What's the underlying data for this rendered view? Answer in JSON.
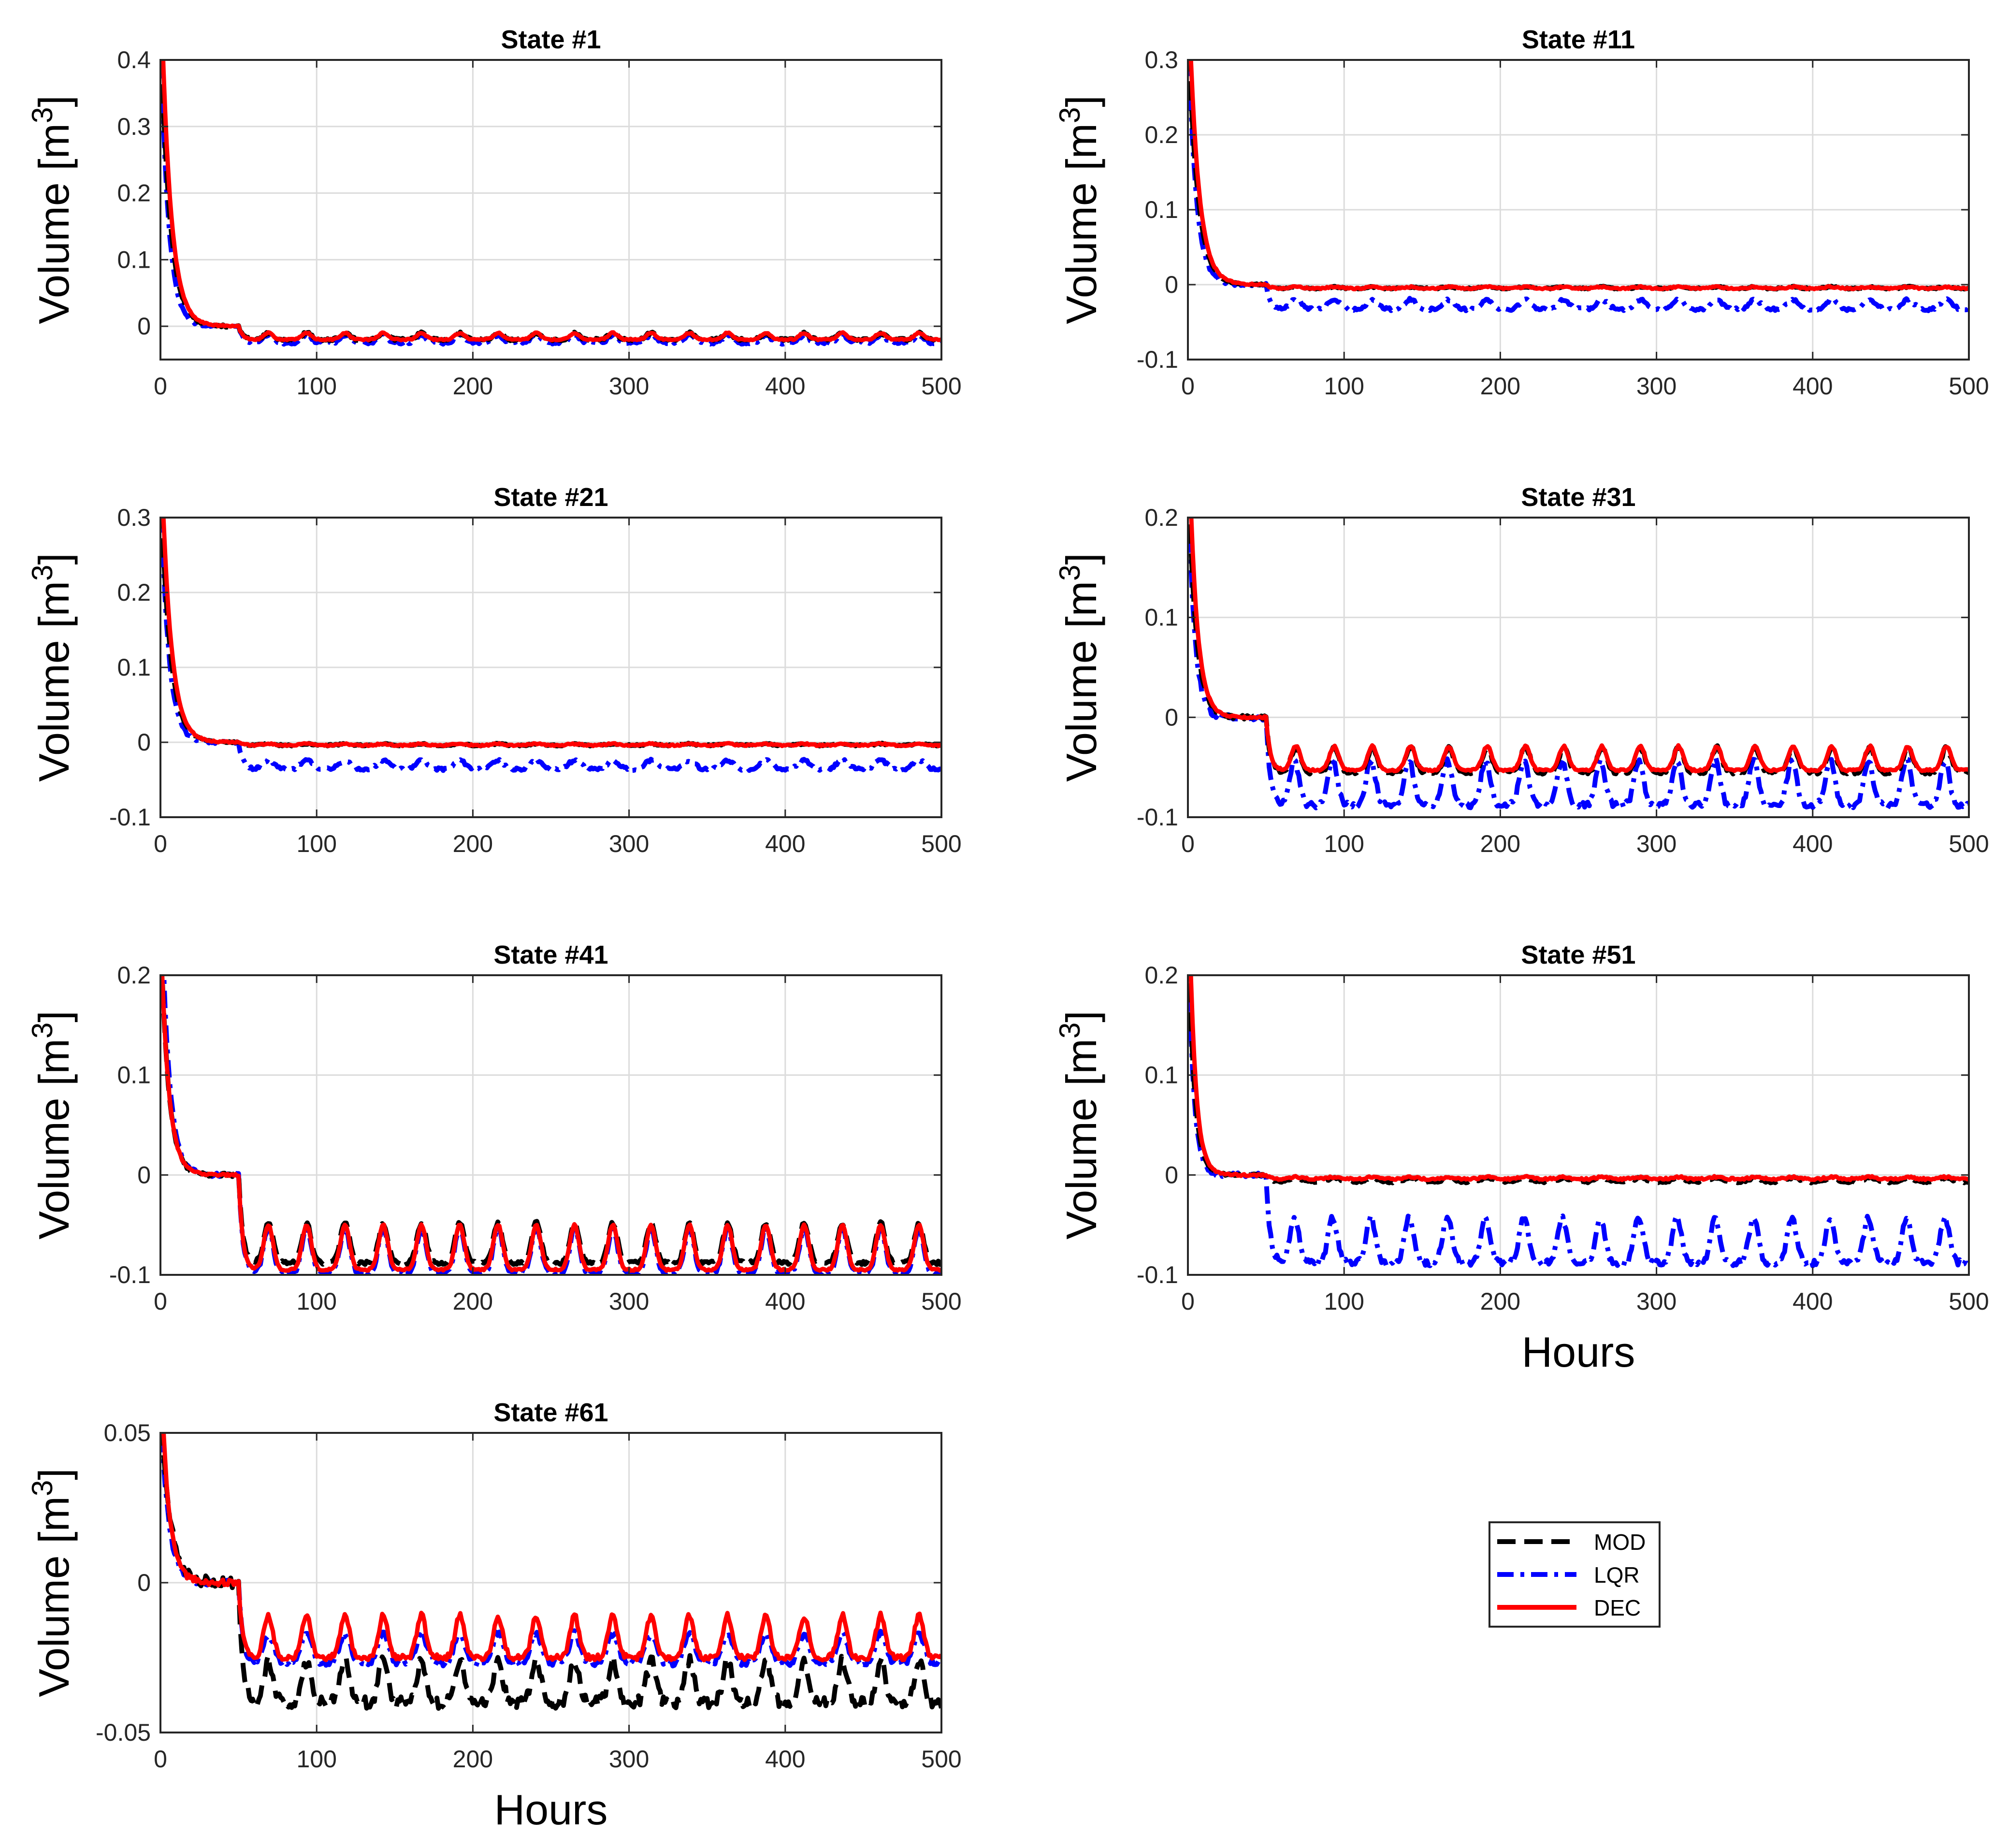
{
  "figure": {
    "ylabel_main": "Volume [m",
    "ylabel_sup": "3",
    "ylabel_close": "]",
    "xlabel": "Hours",
    "colors": {
      "MOD": "#000000",
      "LQR": "#0000ff",
      "DEC": "#ff0000",
      "grid": "#dcdcdc",
      "axis": "#262626"
    }
  },
  "legend": {
    "entries": [
      {
        "name": "MOD",
        "label": "MOD",
        "color": "#000000",
        "dash": "dash"
      },
      {
        "name": "LQR",
        "label": "LQR",
        "color": "#0000ff",
        "dash": "dashdot"
      },
      {
        "name": "DEC",
        "label": "DEC",
        "color": "#ff0000",
        "dash": "solid"
      }
    ]
  },
  "chart_data": [
    {
      "type": "line",
      "title": "State #1",
      "xlabel": "",
      "ylabel": "Volume [m3]",
      "xlim": [
        0,
        500
      ],
      "ylim": [
        -0.05,
        0.4
      ],
      "xticks": [
        0,
        100,
        200,
        300,
        400,
        500
      ],
      "xtick_labels": [
        "0",
        "100",
        "200",
        "300",
        "400",
        "500"
      ],
      "yticks": [
        0,
        0.1,
        0.2,
        0.3,
        0.4
      ],
      "ytick_labels": [
        "0",
        "0.1",
        "0.2",
        "0.3",
        "0.4"
      ],
      "grid": true,
      "series": [
        {
          "name": "MOD",
          "initial": 0.45,
          "tau": 6,
          "delay": 0,
          "step_t": 50,
          "base": -0.02,
          "amp": 0.01,
          "period": 24.5,
          "peak_at": 0.78,
          "peak_width": 0.12,
          "noise": 0.002
        },
        {
          "name": "LQR",
          "initial": 0.45,
          "tau": 5,
          "delay": 0,
          "step_t": 50,
          "base": -0.025,
          "amp": 0.012,
          "period": 24.5,
          "peak_at": 0.78,
          "peak_width": 0.12,
          "noise": 0.002
        },
        {
          "name": "DEC",
          "initial": 0.45,
          "tau": 6,
          "delay": 1,
          "step_t": 50,
          "base": -0.02,
          "amp": 0.01,
          "period": 24.5,
          "peak_at": 0.78,
          "peak_width": 0.12,
          "noise": 0.001
        }
      ]
    },
    {
      "type": "line",
      "title": "State #11",
      "xlabel": "",
      "ylabel": "Volume [m3]",
      "xlim": [
        0,
        500
      ],
      "ylim": [
        -0.1,
        0.3
      ],
      "xticks": [
        0,
        100,
        200,
        300,
        400,
        500
      ],
      "xtick_labels": [
        "0",
        "100",
        "200",
        "300",
        "400",
        "500"
      ],
      "yticks": [
        -0.1,
        0,
        0.1,
        0.2,
        0.3
      ],
      "ytick_labels": [
        "-0.1",
        "0",
        "0.1",
        "0.2",
        "0.3"
      ],
      "grid": true,
      "series": [
        {
          "name": "MOD",
          "initial": 0.35,
          "tau": 6,
          "delay": 0,
          "step_t": 50,
          "base": -0.005,
          "amp": 0.002,
          "period": 24.5,
          "peak_at": 0.78,
          "peak_width": 0.15,
          "noise": 0.001
        },
        {
          "name": "LQR",
          "initial": 0.35,
          "tau": 5,
          "delay": 0,
          "step_t": 50,
          "base": -0.033,
          "amp": 0.013,
          "period": 24.5,
          "peak_at": 0.78,
          "peak_width": 0.15,
          "noise": 0.002
        },
        {
          "name": "DEC",
          "initial": 0.35,
          "tau": 6,
          "delay": 1,
          "step_t": 50,
          "base": -0.005,
          "amp": 0.002,
          "period": 24.5,
          "peak_at": 0.78,
          "peak_width": 0.15,
          "noise": 0.001
        }
      ]
    },
    {
      "type": "line",
      "title": "State #21",
      "xlabel": "",
      "ylabel": "Volume [m3]",
      "xlim": [
        0,
        500
      ],
      "ylim": [
        -0.1,
        0.3
      ],
      "xticks": [
        0,
        100,
        200,
        300,
        400,
        500
      ],
      "xtick_labels": [
        "0",
        "100",
        "200",
        "300",
        "400",
        "500"
      ],
      "yticks": [
        -0.1,
        0,
        0.1,
        0.2,
        0.3
      ],
      "ytick_labels": [
        "-0.1",
        "0",
        "0.1",
        "0.2",
        "0.3"
      ],
      "grid": true,
      "series": [
        {
          "name": "MOD",
          "initial": 0.35,
          "tau": 6,
          "delay": 0,
          "step_t": 50,
          "base": -0.004,
          "amp": 0.002,
          "period": 24.5,
          "peak_at": 0.78,
          "peak_width": 0.15,
          "noise": 0.001
        },
        {
          "name": "LQR",
          "initial": 0.35,
          "tau": 5,
          "delay": 0,
          "step_t": 50,
          "base": -0.036,
          "amp": 0.012,
          "period": 24.5,
          "peak_at": 0.78,
          "peak_width": 0.15,
          "noise": 0.002
        },
        {
          "name": "DEC",
          "initial": 0.35,
          "tau": 6,
          "delay": 1,
          "step_t": 50,
          "base": -0.004,
          "amp": 0.002,
          "period": 24.5,
          "peak_at": 0.78,
          "peak_width": 0.15,
          "noise": 0.001
        }
      ]
    },
    {
      "type": "line",
      "title": "State #31",
      "xlabel": "",
      "ylabel": "Volume [m3]",
      "xlim": [
        0,
        500
      ],
      "ylim": [
        -0.1,
        0.2
      ],
      "xticks": [
        0,
        100,
        200,
        300,
        400,
        500
      ],
      "xtick_labels": [
        "0",
        "100",
        "200",
        "300",
        "400",
        "500"
      ],
      "yticks": [
        -0.1,
        0,
        0.1,
        0.2
      ],
      "ytick_labels": [
        "-0.1",
        "0",
        "0.1",
        "0.2"
      ],
      "grid": true,
      "series": [
        {
          "name": "MOD",
          "initial": 0.25,
          "tau": 5,
          "delay": 0,
          "step_t": 50,
          "base": -0.055,
          "amp": 0.025,
          "period": 24.5,
          "peak_at": 0.78,
          "peak_width": 0.12,
          "noise": 0.002
        },
        {
          "name": "LQR",
          "initial": 0.25,
          "tau": 4,
          "delay": 0,
          "step_t": 50,
          "base": -0.088,
          "amp": 0.045,
          "period": 24.5,
          "peak_at": 0.74,
          "peak_width": 0.12,
          "noise": 0.003
        },
        {
          "name": "DEC",
          "initial": 0.25,
          "tau": 5,
          "delay": 1,
          "step_t": 50,
          "base": -0.053,
          "amp": 0.024,
          "period": 24.5,
          "peak_at": 0.78,
          "peak_width": 0.12,
          "noise": 0.001
        }
      ]
    },
    {
      "type": "line",
      "title": "State #41",
      "xlabel": "",
      "ylabel": "Volume [m3]",
      "xlim": [
        0,
        500
      ],
      "ylim": [
        -0.1,
        0.2
      ],
      "xticks": [
        0,
        100,
        200,
        300,
        400,
        500
      ],
      "xtick_labels": [
        "0",
        "100",
        "200",
        "300",
        "400",
        "500"
      ],
      "yticks": [
        -0.1,
        0,
        0.1,
        0.2
      ],
      "ytick_labels": [
        "-0.1",
        "0",
        "0.1",
        "0.2"
      ],
      "grid": true,
      "series": [
        {
          "name": "MOD",
          "initial": 0.25,
          "tau": 5,
          "delay": 0,
          "step_t": 50,
          "base": -0.088,
          "amp": 0.04,
          "period": 24.5,
          "peak_at": 0.78,
          "peak_width": 0.12,
          "noise": 0.002
        },
        {
          "name": "LQR",
          "initial": 0.25,
          "tau": 5,
          "delay": 1,
          "step_t": 50,
          "base": -0.098,
          "amp": 0.045,
          "period": 24.5,
          "peak_at": 0.78,
          "peak_width": 0.12,
          "noise": 0.002
        },
        {
          "name": "DEC",
          "initial": 0.25,
          "tau": 5,
          "delay": 0,
          "step_t": 50,
          "base": -0.095,
          "amp": 0.045,
          "period": 24.5,
          "peak_at": 0.78,
          "peak_width": 0.12,
          "noise": 0.001
        }
      ]
    },
    {
      "type": "line",
      "title": "State #51",
      "xlabel": "Hours",
      "ylabel": "Volume [m3]",
      "xlim": [
        0,
        500
      ],
      "ylim": [
        -0.1,
        0.2
      ],
      "xticks": [
        0,
        100,
        200,
        300,
        400,
        500
      ],
      "xtick_labels": [
        "0",
        "100",
        "200",
        "300",
        "400",
        "500"
      ],
      "yticks": [
        -0.1,
        0,
        0.1,
        0.2
      ],
      "ytick_labels": [
        "-0.1",
        "0",
        "0.1",
        "0.2"
      ],
      "grid": true,
      "series": [
        {
          "name": "MOD",
          "initial": 0.25,
          "tau": 4,
          "delay": 0,
          "step_t": 50,
          "base": -0.007,
          "amp": 0.004,
          "period": 24.5,
          "peak_at": 0.78,
          "peak_width": 0.15,
          "noise": 0.001
        },
        {
          "name": "LQR",
          "initial": 0.25,
          "tau": 3.5,
          "delay": 0,
          "step_t": 50,
          "base": -0.088,
          "amp": 0.045,
          "period": 24.5,
          "peak_at": 0.74,
          "peak_width": 0.12,
          "noise": 0.003
        },
        {
          "name": "DEC",
          "initial": 0.25,
          "tau": 4,
          "delay": 1,
          "step_t": 50,
          "base": -0.004,
          "amp": 0.002,
          "period": 24.5,
          "peak_at": 0.78,
          "peak_width": 0.15,
          "noise": 0.001
        }
      ]
    },
    {
      "type": "line",
      "title": "State #61",
      "xlabel": "Hours",
      "ylabel": "Volume [m3]",
      "xlim": [
        0,
        500
      ],
      "ylim": [
        -0.05,
        0.05
      ],
      "xticks": [
        0,
        100,
        200,
        300,
        400,
        500
      ],
      "xtick_labels": [
        "0",
        "100",
        "200",
        "300",
        "400",
        "500"
      ],
      "yticks": [
        -0.05,
        0,
        0.05
      ],
      "ytick_labels": [
        "-0.05",
        "0",
        "0.05"
      ],
      "grid": true,
      "series": [
        {
          "name": "MOD",
          "initial": 0.06,
          "tau": 6,
          "delay": 0,
          "step_t": 50,
          "base": -0.04,
          "amp": 0.014,
          "period": 24.5,
          "peak_at": 0.78,
          "peak_width": 0.12,
          "noise": 0.002
        },
        {
          "name": "LQR",
          "initial": 0.06,
          "tau": 5,
          "delay": 0,
          "step_t": 50,
          "base": -0.027,
          "amp": 0.01,
          "period": 24.5,
          "peak_at": 0.78,
          "peak_width": 0.14,
          "noise": 0.001
        },
        {
          "name": "DEC",
          "initial": 0.06,
          "tau": 5,
          "delay": 1,
          "step_t": 50,
          "base": -0.025,
          "amp": 0.014,
          "period": 24.5,
          "peak_at": 0.78,
          "peak_width": 0.12,
          "noise": 0.001
        }
      ]
    }
  ]
}
